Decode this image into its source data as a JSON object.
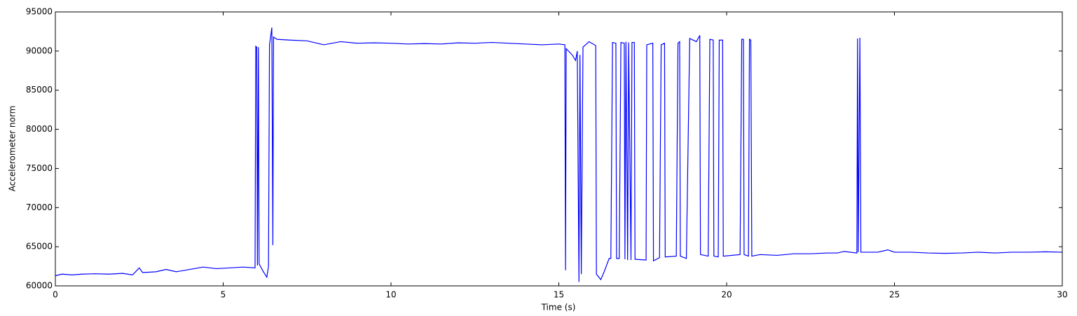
{
  "chart_data": {
    "type": "line",
    "xlabel": "Time (s)",
    "ylabel": "Accelerometer norm",
    "color": "#0000ff",
    "x": [
      0,
      0.2,
      0.5,
      0.8,
      1.2,
      1.6,
      2.0,
      2.3,
      2.5,
      2.6,
      3.0,
      3.3,
      3.6,
      4.0,
      4.4,
      4.8,
      5.2,
      5.6,
      5.95,
      5.97,
      6.0,
      6.02,
      6.05,
      6.07,
      6.2,
      6.3,
      6.35,
      6.38,
      6.45,
      6.48,
      6.5,
      6.6,
      7.0,
      7.5,
      8.0,
      8.5,
      9.0,
      9.5,
      10.0,
      10.5,
      11.0,
      11.5,
      12.0,
      12.5,
      13.0,
      13.5,
      14.0,
      14.5,
      15.0,
      15.18,
      15.2,
      15.22,
      15.4,
      15.5,
      15.55,
      15.6,
      15.63,
      15.67,
      15.72,
      15.9,
      16.1,
      16.12,
      16.25,
      16.35,
      16.5,
      16.55,
      16.6,
      16.7,
      16.72,
      16.8,
      16.85,
      16.95,
      16.97,
      17.0,
      17.05,
      17.08,
      17.15,
      17.18,
      17.25,
      17.27,
      17.6,
      17.62,
      17.8,
      17.82,
      18.0,
      18.05,
      18.15,
      18.17,
      18.5,
      18.55,
      18.6,
      18.62,
      18.8,
      18.9,
      19.1,
      19.2,
      19.22,
      19.45,
      19.5,
      19.6,
      19.62,
      19.75,
      19.78,
      19.88,
      19.9,
      20.4,
      20.45,
      20.5,
      20.52,
      20.65,
      20.68,
      20.72,
      20.75,
      21.0,
      21.5,
      22.0,
      22.5,
      23.0,
      23.3,
      23.5,
      23.88,
      23.9,
      23.92,
      23.97,
      24.0,
      24.5,
      24.8,
      25.0,
      25.5,
      26.0,
      26.5,
      27.0,
      27.5,
      28.0,
      28.5,
      29.0,
      29.5,
      30.0
    ],
    "values": [
      61300,
      61500,
      61400,
      61500,
      61550,
      61500,
      61600,
      61400,
      62300,
      61700,
      61800,
      62100,
      61800,
      62100,
      62400,
      62200,
      62300,
      62400,
      62300,
      90600,
      90500,
      62600,
      90500,
      62800,
      61800,
      61100,
      62500,
      90800,
      93000,
      65200,
      91800,
      91500,
      91400,
      91300,
      90800,
      91200,
      91000,
      91050,
      91000,
      90900,
      90950,
      90900,
      91050,
      91000,
      91100,
      91000,
      90900,
      90800,
      90900,
      90800,
      62000,
      90300,
      89500,
      88800,
      90000,
      60500,
      89500,
      61500,
      90500,
      91200,
      90700,
      61500,
      60800,
      61800,
      63500,
      63500,
      91100,
      91000,
      63500,
      63500,
      91100,
      91000,
      63400,
      91200,
      63300,
      91100,
      63300,
      91100,
      91100,
      63400,
      63300,
      90800,
      91000,
      63200,
      63600,
      90800,
      91000,
      63700,
      63800,
      91000,
      91200,
      63800,
      63500,
      91600,
      91200,
      92000,
      64000,
      63800,
      91500,
      91400,
      63800,
      63700,
      91400,
      91400,
      63800,
      64000,
      91500,
      91500,
      64000,
      63800,
      91500,
      91400,
      63800,
      64000,
      63900,
      64100,
      64100,
      64200,
      64200,
      64400,
      64200,
      91600,
      64300,
      91700,
      64300,
      64300,
      64600,
      64300,
      64300,
      64200,
      64150,
      64200,
      64300,
      64200,
      64300,
      64300,
      64350,
      64300
    ],
    "xlim": [
      0,
      30
    ],
    "xticks": [
      0,
      5,
      10,
      15,
      20,
      25,
      30
    ],
    "ylim": [
      60000,
      95000
    ],
    "yticks": [
      60000,
      65000,
      70000,
      75000,
      80000,
      85000,
      90000,
      95000
    ],
    "grid": false
  }
}
